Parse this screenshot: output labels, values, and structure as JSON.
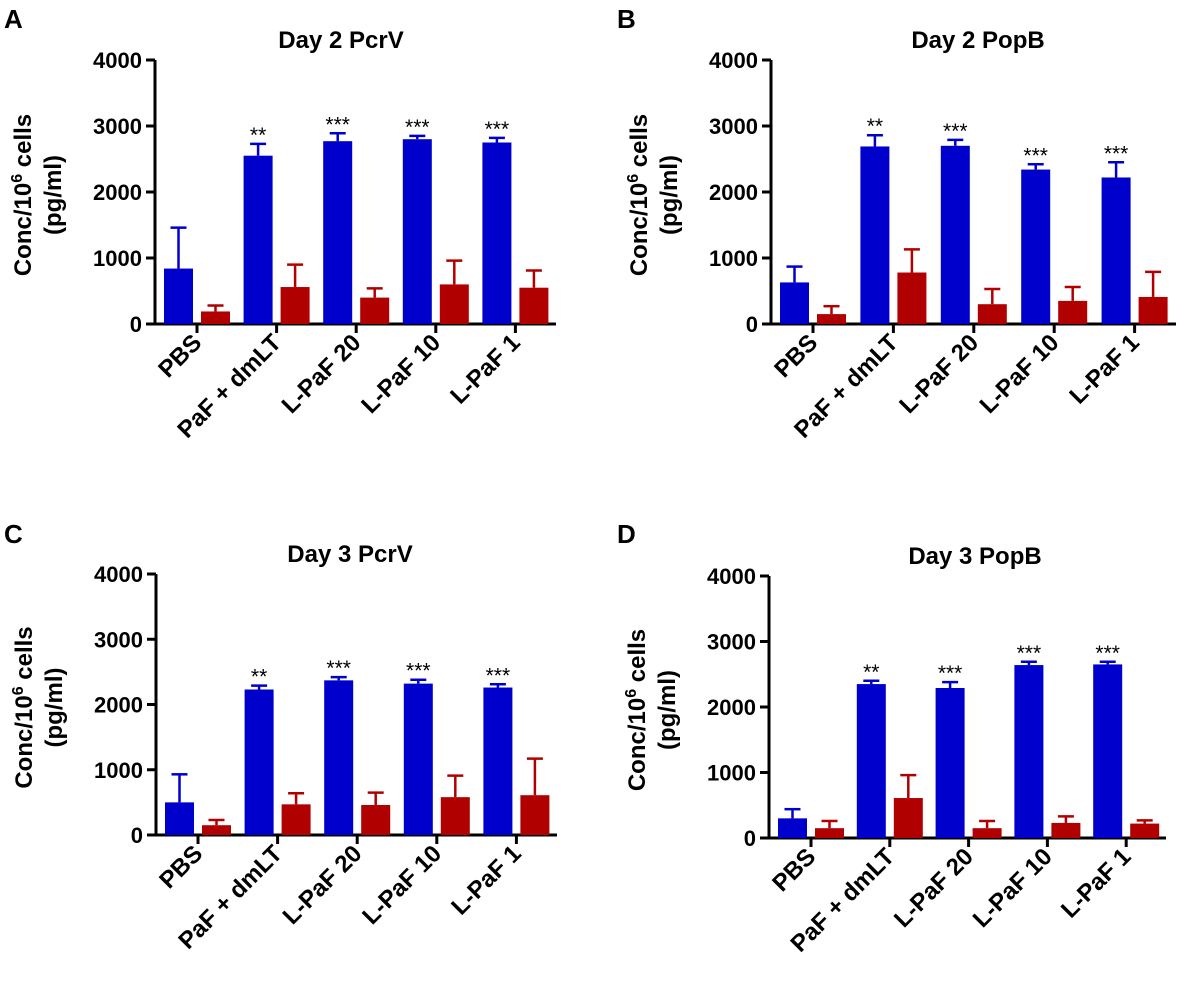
{
  "colors": {
    "series1": "#0000cc",
    "series2": "#b00000",
    "axis": "#000000"
  },
  "chart_data": [
    {
      "panel": "A",
      "type": "bar",
      "title": "Day 2 PcrV",
      "ylabel_line1": "Conc/10",
      "ylabel_sup": "6",
      "ylabel_line1_tail": " cells",
      "ylabel_line2": "(pg/ml)",
      "xlabel": "",
      "ylim": [
        0,
        4000
      ],
      "yticks": [
        "0",
        "1000",
        "2000",
        "3000",
        "4000"
      ],
      "categories": [
        "PBS",
        "PaF + dmLT",
        "L-PaF 20",
        "L-PaF 10",
        "L-PaF 1"
      ],
      "series": [
        {
          "name": "series-1",
          "values": [
            840,
            2550,
            2770,
            2800,
            2750
          ],
          "errors": [
            620,
            180,
            120,
            50,
            70
          ]
        },
        {
          "name": "series-2",
          "values": [
            190,
            560,
            400,
            600,
            550
          ],
          "errors": [
            90,
            340,
            140,
            360,
            260
          ]
        }
      ],
      "significance": [
        "",
        "**",
        "***",
        "***",
        "***"
      ]
    },
    {
      "panel": "B",
      "type": "bar",
      "title": "Day 2 PopB",
      "ylabel_line1": "Conc/10",
      "ylabel_sup": "6",
      "ylabel_line1_tail": " cells",
      "ylabel_line2": "(pg/ml)",
      "xlabel": "",
      "ylim": [
        0,
        4000
      ],
      "yticks": [
        "0",
        "1000",
        "2000",
        "3000",
        "4000"
      ],
      "categories": [
        "PBS",
        "PaF + dmLT",
        "L-PaF 20",
        "L-PaF 10",
        "L-PaF 1"
      ],
      "series": [
        {
          "name": "series-1",
          "values": [
            630,
            2690,
            2700,
            2340,
            2220
          ],
          "errors": [
            240,
            170,
            90,
            80,
            230
          ]
        },
        {
          "name": "series-2",
          "values": [
            150,
            780,
            300,
            350,
            410
          ],
          "errors": [
            120,
            350,
            230,
            210,
            380
          ]
        }
      ],
      "significance": [
        "",
        "**",
        "***",
        "***",
        "***"
      ]
    },
    {
      "panel": "C",
      "type": "bar",
      "title": "Day 3 PcrV",
      "ylabel_line1": "Conc/10",
      "ylabel_sup": "6",
      "ylabel_line1_tail": " cells",
      "ylabel_line2": "(pg/ml)",
      "xlabel": "",
      "ylim": [
        0,
        4000
      ],
      "yticks": [
        "0",
        "1000",
        "2000",
        "3000",
        "4000"
      ],
      "categories": [
        "PBS",
        "PaF + dmLT",
        "L-PaF 20",
        "L-PaF 10",
        "L-PaF 1"
      ],
      "series": [
        {
          "name": "series-1",
          "values": [
            500,
            2230,
            2370,
            2320,
            2260
          ],
          "errors": [
            430,
            60,
            50,
            60,
            50
          ]
        },
        {
          "name": "series-2",
          "values": [
            150,
            470,
            460,
            580,
            610
          ],
          "errors": [
            80,
            170,
            190,
            330,
            560
          ]
        }
      ],
      "significance": [
        "",
        "**",
        "***",
        "***",
        "***"
      ]
    },
    {
      "panel": "D",
      "type": "bar",
      "title": "Day 3 PopB",
      "ylabel_line1": "Conc/10",
      "ylabel_sup": "6",
      "ylabel_line1_tail": " cells",
      "ylabel_line2": "(pg/ml)",
      "xlabel": "",
      "ylim": [
        0,
        4000
      ],
      "yticks": [
        "0",
        "1000",
        "2000",
        "3000",
        "4000"
      ],
      "categories": [
        "PBS",
        "PaF + dmLT",
        "L-PaF 20",
        "L-PaF 10",
        "L-PaF 1"
      ],
      "series": [
        {
          "name": "series-1",
          "values": [
            300,
            2350,
            2290,
            2640,
            2650
          ],
          "errors": [
            140,
            50,
            90,
            50,
            40
          ]
        },
        {
          "name": "series-2",
          "values": [
            150,
            610,
            150,
            230,
            220
          ],
          "errors": [
            110,
            350,
            110,
            100,
            50
          ]
        }
      ],
      "significance": [
        "",
        "**",
        "***",
        "***",
        "***"
      ]
    }
  ]
}
